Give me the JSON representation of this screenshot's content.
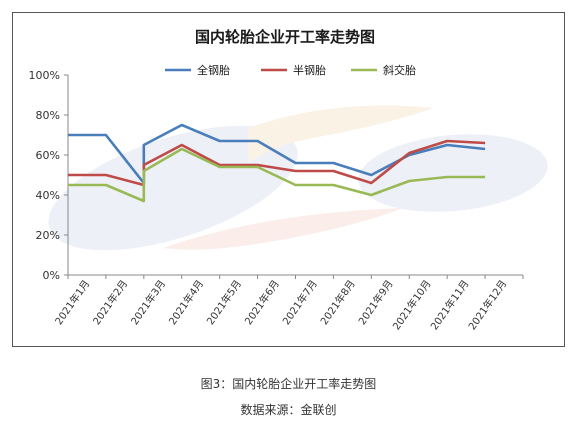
{
  "chart_data": {
    "type": "line",
    "title": "国内轮胎企业开工率走势图",
    "categories": [
      "2021年1月",
      "2021年2月",
      "2021年3月",
      "2021年4月",
      "2021年5月",
      "2021年6月",
      "2021年7月",
      "2021年8月",
      "2021年9月",
      "2021年10月",
      "2021年11月",
      "2021年12月"
    ],
    "ylim": [
      0,
      100
    ],
    "yticks": [
      "0%",
      "20%",
      "40%",
      "60%",
      "80%",
      "100%"
    ],
    "legend_position": "top",
    "grid": false,
    "series": [
      {
        "name": "全钢胎",
        "color": "#4a7ebb",
        "points": [
          [
            0,
            70
          ],
          [
            1,
            70
          ],
          [
            2,
            46
          ],
          [
            2,
            65
          ],
          [
            3,
            75
          ],
          [
            4,
            67
          ],
          [
            5,
            67
          ],
          [
            6,
            56
          ],
          [
            7,
            56
          ],
          [
            8,
            50
          ],
          [
            9,
            60
          ],
          [
            10,
            65
          ],
          [
            11,
            63
          ]
        ]
      },
      {
        "name": "半钢胎",
        "color": "#be4b48",
        "points": [
          [
            0,
            50
          ],
          [
            1,
            50
          ],
          [
            2,
            45
          ],
          [
            2,
            55
          ],
          [
            3,
            65
          ],
          [
            4,
            55
          ],
          [
            5,
            55
          ],
          [
            6,
            52
          ],
          [
            7,
            52
          ],
          [
            8,
            46
          ],
          [
            9,
            61
          ],
          [
            10,
            67
          ],
          [
            11,
            66
          ]
        ]
      },
      {
        "name": "斜交胎",
        "color": "#98b954",
        "points": [
          [
            0,
            45
          ],
          [
            1,
            45
          ],
          [
            2,
            37
          ],
          [
            2,
            52
          ],
          [
            3,
            63
          ],
          [
            4,
            54
          ],
          [
            5,
            54
          ],
          [
            6,
            45
          ],
          [
            7,
            45
          ],
          [
            8,
            40
          ],
          [
            9,
            47
          ],
          [
            10,
            49
          ],
          [
            11,
            49
          ]
        ]
      }
    ]
  },
  "caption": {
    "figure": "图3：国内轮胎企业开工率走势图",
    "source": "数据来源：金联创"
  }
}
